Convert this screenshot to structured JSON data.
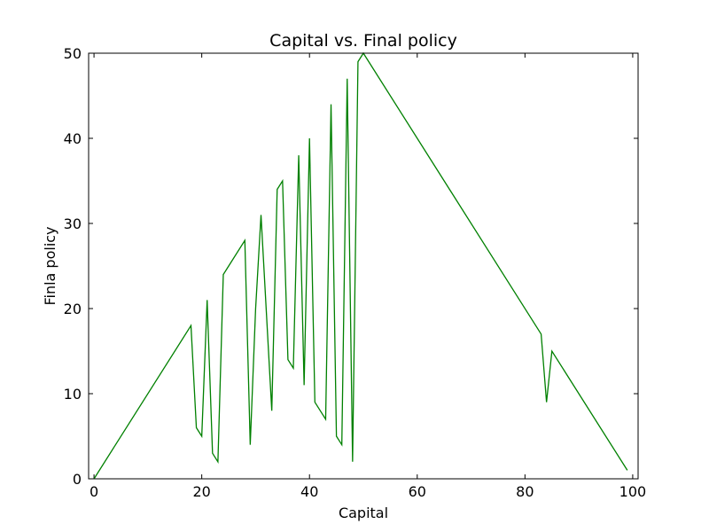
{
  "chart_data": {
    "type": "line",
    "title": "Capital vs. Final policy",
    "xlabel": "Capital",
    "ylabel": "Finla policy",
    "xlim": [
      -1,
      101
    ],
    "ylim": [
      0,
      50
    ],
    "xticks": [
      0,
      20,
      40,
      60,
      80,
      100
    ],
    "yticks": [
      0,
      10,
      20,
      30,
      40,
      50
    ],
    "grid": false,
    "series": [
      {
        "color": "#008000",
        "x": [
          0,
          18,
          19,
          20,
          21,
          22,
          23,
          24,
          28,
          29,
          30,
          31,
          33,
          34,
          35,
          36,
          37,
          38,
          39,
          40,
          41,
          43,
          44,
          45,
          46,
          47,
          48,
          49,
          50,
          83,
          84,
          85,
          99
        ],
        "y": [
          0,
          18,
          6,
          5,
          21,
          3,
          2,
          24,
          28,
          4,
          20,
          31,
          8,
          34,
          35,
          14,
          13,
          38,
          11,
          40,
          9,
          7,
          44,
          5,
          4,
          47,
          2,
          49,
          50,
          17,
          9,
          15,
          1
        ]
      }
    ]
  }
}
